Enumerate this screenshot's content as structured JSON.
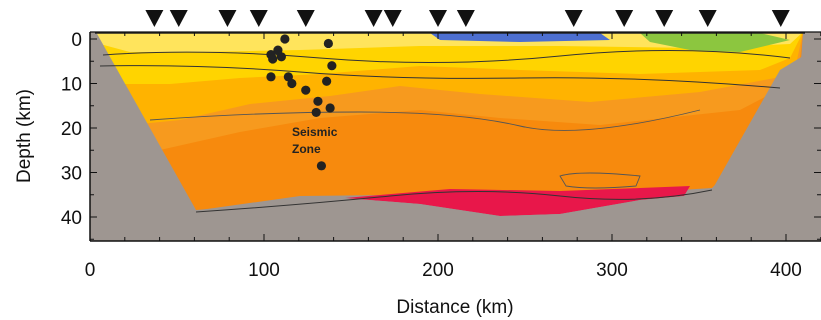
{
  "chart_data": {
    "type": "scatter",
    "title": "",
    "xlabel": "Distance (km)",
    "ylabel": "Depth (km)",
    "xlim": [
      0,
      420
    ],
    "ylim": [
      0,
      46
    ],
    "y_inverted": true,
    "x_ticks": [
      0,
      100,
      200,
      300,
      400
    ],
    "y_ticks": [
      0,
      10,
      20,
      30,
      40
    ],
    "annotation": "Seismic\nZone",
    "stations_km": [
      37,
      51,
      79,
      97,
      124,
      163,
      174,
      200,
      216,
      278,
      307,
      330,
      355,
      397
    ],
    "earthquakes": [
      {
        "x": 112,
        "y": 0
      },
      {
        "x": 137,
        "y": 1
      },
      {
        "x": 108,
        "y": 2.5
      },
      {
        "x": 104,
        "y": 3.5
      },
      {
        "x": 110,
        "y": 4
      },
      {
        "x": 105,
        "y": 4.5
      },
      {
        "x": 139,
        "y": 6
      },
      {
        "x": 104,
        "y": 8.5
      },
      {
        "x": 114,
        "y": 8.5
      },
      {
        "x": 136,
        "y": 9.5
      },
      {
        "x": 116,
        "y": 10
      },
      {
        "x": 124,
        "y": 11.5
      },
      {
        "x": 131,
        "y": 14
      },
      {
        "x": 138,
        "y": 15.5
      },
      {
        "x": 130,
        "y": 16.5
      },
      {
        "x": 133,
        "y": 28.5
      }
    ],
    "colors": {
      "basement": "#9e9691",
      "zone_yellow": "#ffd400",
      "zone_light_orange": "#ffb300",
      "zone_orange": "#f79a1e",
      "zone_deep_orange": "#f78a0d",
      "zone_red": "#e8174a",
      "zone_blue": "#4d6fd0",
      "zone_green": "#8cc63f",
      "station_marker": "#111111",
      "event_marker": "#222222"
    }
  }
}
